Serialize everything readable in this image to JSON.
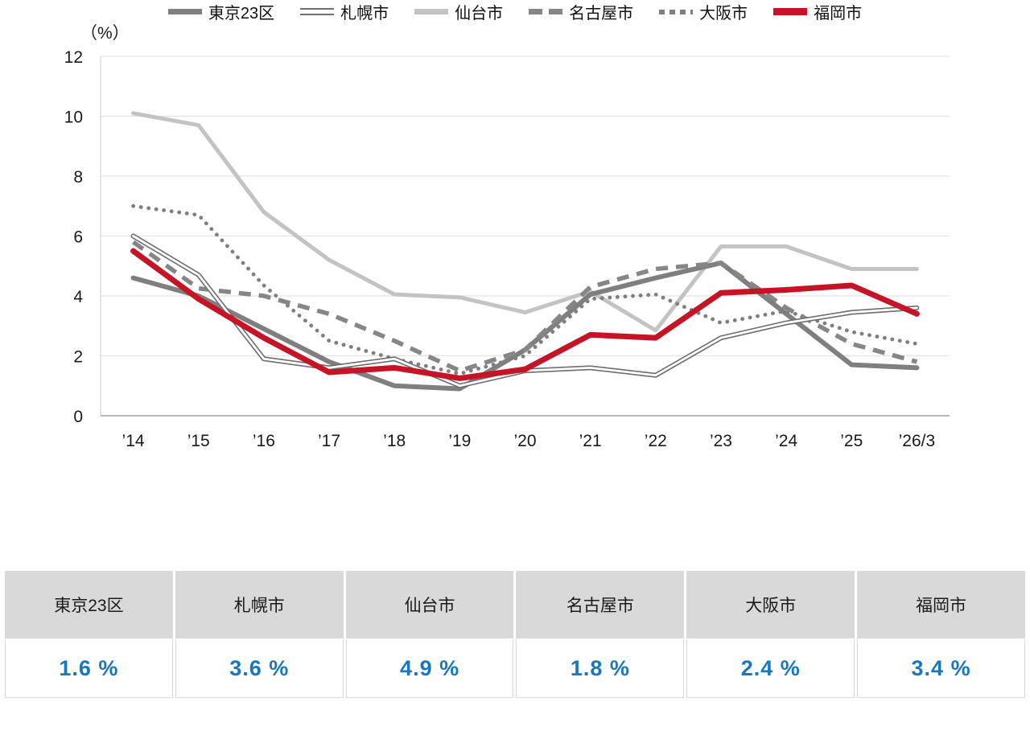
{
  "chart_data": {
    "type": "line",
    "title": "",
    "ylabel": "（%）",
    "xlabel": "",
    "ylim": [
      0,
      12
    ],
    "y_ticks": [
      0,
      2,
      4,
      6,
      8,
      10,
      12
    ],
    "grid": true,
    "legend_position": "bottom",
    "x": [
      "’14",
      "’15",
      "’16",
      "’17",
      "’18",
      "’19",
      "’20",
      "’21",
      "’22",
      "’23",
      "’24",
      "’25",
      "’26/3"
    ],
    "series": [
      {
        "name": "東京23区",
        "style": "solid-thick",
        "color": "#7f7f7f",
        "values": [
          4.6,
          4.0,
          2.9,
          1.8,
          1.0,
          0.9,
          2.2,
          4.05,
          4.6,
          5.1,
          3.4,
          1.7,
          1.6
        ]
      },
      {
        "name": "札幌市",
        "style": "double",
        "color": "#6e6e6e",
        "values": [
          6.0,
          4.7,
          1.9,
          1.6,
          1.9,
          1.0,
          1.5,
          1.6,
          1.35,
          2.6,
          3.1,
          3.45,
          3.6
        ]
      },
      {
        "name": "仙台市",
        "style": "solid-light",
        "color": "#c3c3c3",
        "values": [
          10.1,
          9.7,
          6.8,
          5.2,
          4.05,
          3.95,
          3.45,
          4.15,
          2.85,
          5.65,
          5.65,
          4.9,
          4.9
        ]
      },
      {
        "name": "名古屋市",
        "style": "dashed",
        "color": "#868686",
        "values": [
          5.8,
          4.25,
          4.0,
          3.4,
          2.5,
          1.5,
          2.2,
          4.3,
          4.9,
          5.1,
          3.6,
          2.4,
          1.8
        ]
      },
      {
        "name": "大阪市",
        "style": "dotted",
        "color": "#7f7f7f",
        "values": [
          7.0,
          6.7,
          4.35,
          2.5,
          1.9,
          1.4,
          2.0,
          3.9,
          4.05,
          3.1,
          3.5,
          2.8,
          2.4
        ]
      },
      {
        "name": "福岡市",
        "style": "solid-red",
        "color": "#c41426",
        "values": [
          5.5,
          3.9,
          2.6,
          1.45,
          1.6,
          1.25,
          1.55,
          2.7,
          2.6,
          4.1,
          4.2,
          4.35,
          3.4
        ]
      }
    ]
  },
  "summary_table": {
    "value_color": "#1878bd",
    "columns": [
      {
        "label": "東京23区",
        "value": "1.6 %"
      },
      {
        "label": "札幌市",
        "value": "3.6 %"
      },
      {
        "label": "仙台市",
        "value": "4.9 %"
      },
      {
        "label": "名古屋市",
        "value": "1.8 %"
      },
      {
        "label": "大阪市",
        "value": "2.4 %"
      },
      {
        "label": "福岡市",
        "value": "3.4 %"
      }
    ]
  }
}
